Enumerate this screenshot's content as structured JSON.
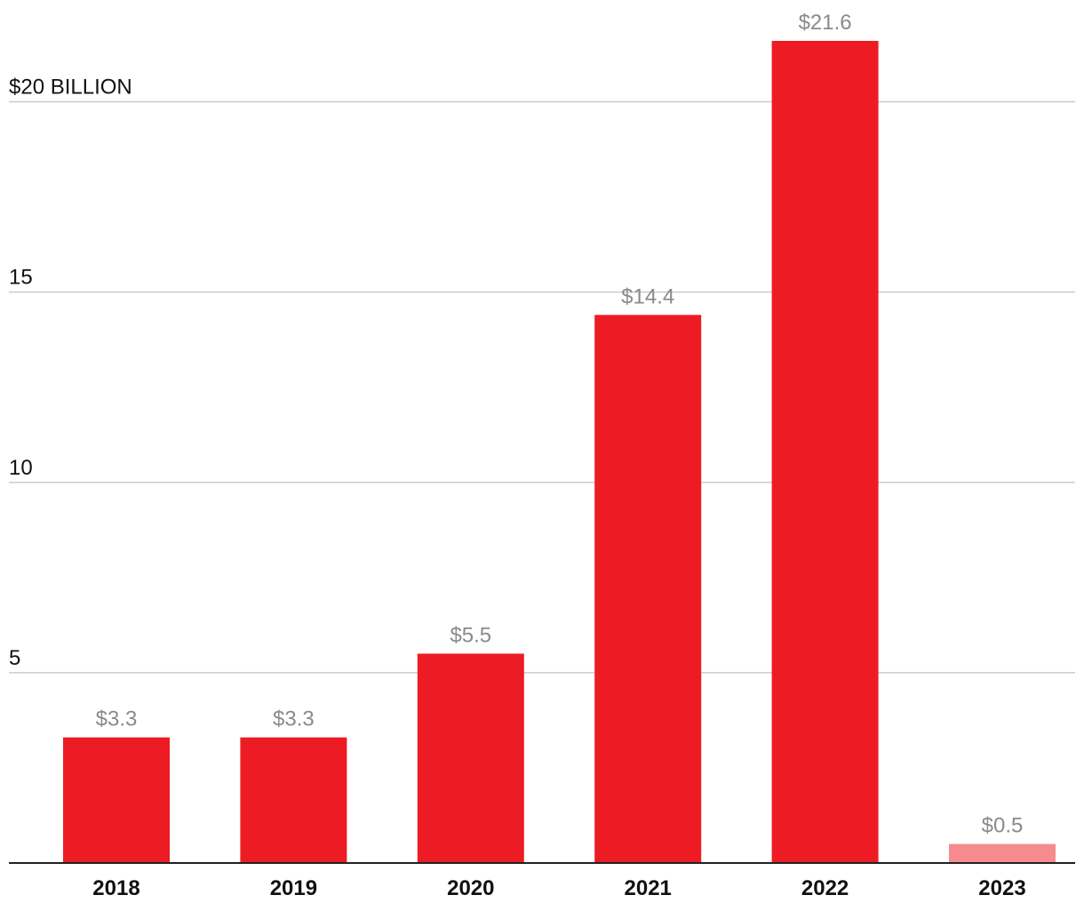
{
  "chart_data": {
    "type": "bar",
    "categories": [
      "2018",
      "2019",
      "2020",
      "2021",
      "2022",
      "2023"
    ],
    "values": [
      3.3,
      3.3,
      5.5,
      14.4,
      21.6,
      0.5
    ],
    "value_labels": [
      "$3.3",
      "$3.3",
      "$5.5",
      "$14.4",
      "$21.6",
      "$0.5"
    ],
    "bar_colors": [
      "#ed1c24",
      "#ed1c24",
      "#ed1c24",
      "#ed1c24",
      "#ed1c24",
      "#f58b8e"
    ],
    "y_ticks": [
      5,
      10,
      15,
      20
    ],
    "y_tick_labels": [
      "5",
      "10",
      "15",
      "$20 BILLION"
    ],
    "ylim": [
      0,
      21.6
    ],
    "grid": true,
    "title": "",
    "xlabel": "",
    "ylabel": ""
  }
}
